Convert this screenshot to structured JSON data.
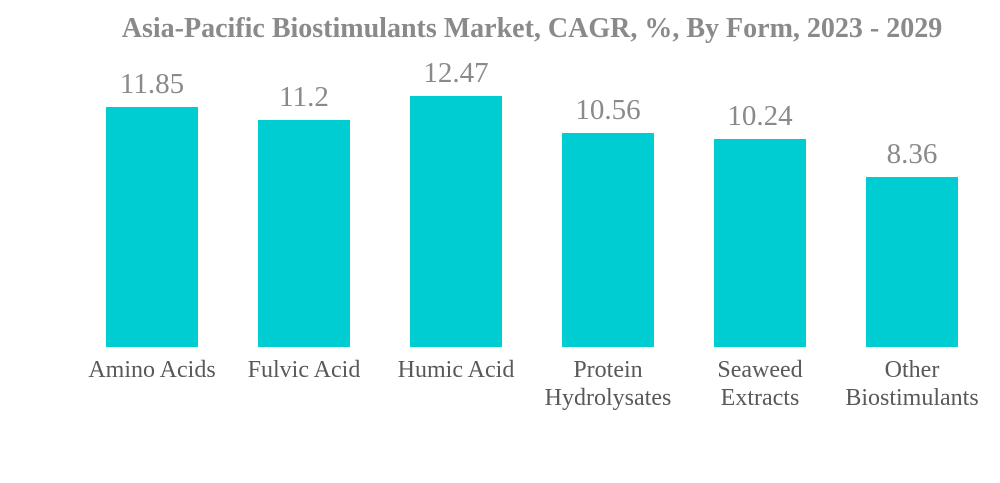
{
  "colors": {
    "bar": "#00CDD1",
    "title_text": "#8A8A8A",
    "value_label_text": "#8A8A8A",
    "category_label_text": "#595959",
    "background": "#FFFFFF"
  },
  "chart_data": {
    "type": "bar",
    "title": "Asia-Pacific Biostimulants Market, CAGR, %, By Form, 2023 - 2029",
    "categories": [
      "Amino Acids",
      "Fulvic Acid",
      "Humic Acid",
      "Protein Hydrolysates",
      "Seaweed Extracts",
      "Other Biostimulants"
    ],
    "values": [
      11.85,
      11.2,
      12.47,
      10.56,
      10.24,
      8.36
    ],
    "value_labels": [
      "11.85",
      "11.2",
      "12.47",
      "10.56",
      "10.24",
      "8.36"
    ],
    "xlabel": "",
    "ylabel": "",
    "ylim": [
      0,
      14.3
    ],
    "grid": false,
    "legend": false,
    "bar_color": "#00CDD1",
    "orientation": "vertical",
    "value_labels_shown": true
  }
}
